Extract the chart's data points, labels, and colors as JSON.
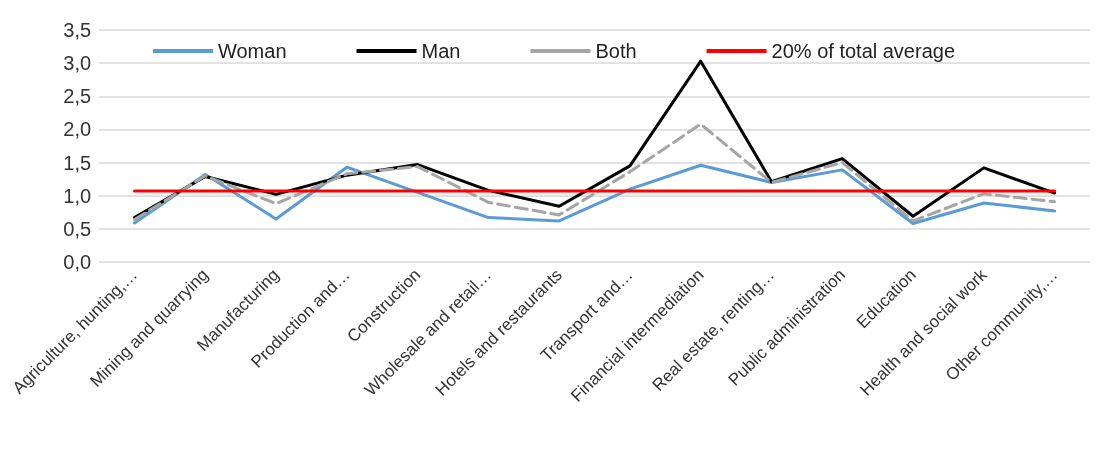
{
  "chart_data": {
    "type": "line",
    "categories": [
      "Agriculture, hunting,…",
      "Mining and quarrying",
      "Manufacturing",
      "Production and…",
      "Construction",
      "Wholesale and retail…",
      "Hotels and restaurants",
      "Transport and…",
      "Financial intermediation",
      "Real estate, renting…",
      "Public administration",
      "Education",
      "Health and social work",
      "Other community,…"
    ],
    "series": [
      {
        "name": "Woman",
        "color": "#5b9bd5",
        "values": [
          0.59,
          1.32,
          0.65,
          1.43,
          1.05,
          0.67,
          0.62,
          1.1,
          1.46,
          1.2,
          1.39,
          0.58,
          0.89,
          0.77
        ]
      },
      {
        "name": "Man",
        "color": "#000000",
        "values": [
          0.67,
          1.29,
          1.02,
          1.31,
          1.47,
          1.08,
          0.84,
          1.45,
          3.03,
          1.21,
          1.56,
          0.69,
          1.42,
          1.04
        ]
      },
      {
        "name": "Both",
        "color": "#a5a5a5",
        "line_style": "dashed",
        "values": [
          0.64,
          1.3,
          0.88,
          1.33,
          1.44,
          0.9,
          0.71,
          1.36,
          2.08,
          1.2,
          1.5,
          0.62,
          1.03,
          0.91
        ]
      },
      {
        "name": "20% of total average",
        "color": "#ff0000",
        "values": [
          1.07,
          1.07,
          1.07,
          1.07,
          1.07,
          1.07,
          1.07,
          1.07,
          1.07,
          1.07,
          1.07,
          1.07,
          1.07,
          1.07
        ]
      }
    ],
    "ylim": [
      0,
      3.5
    ],
    "yticks": [
      {
        "value": 0,
        "label": "0,0"
      },
      {
        "value": 0.5,
        "label": "0,5"
      },
      {
        "value": 1,
        "label": "1,0"
      },
      {
        "value": 1.5,
        "label": "1,5"
      },
      {
        "value": 2,
        "label": "2,0"
      },
      {
        "value": 2.5,
        "label": "2,5"
      },
      {
        "value": 3,
        "label": "3,0"
      },
      {
        "value": 3.5,
        "label": "3,5"
      }
    ],
    "grid": "y",
    "legend": "top",
    "marker": "none",
    "line_style": "solid"
  }
}
